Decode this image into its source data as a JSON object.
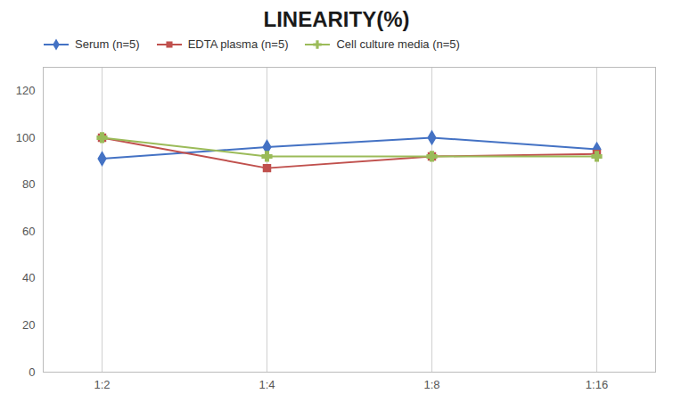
{
  "chart_data": {
    "type": "line",
    "title": "LINEARITY(%)",
    "categories": [
      "1:2",
      "1:4",
      "1:8",
      "1:16"
    ],
    "series": [
      {
        "name": "Serum (n=5)",
        "color": "#4472C4",
        "marker": "diamond",
        "values": [
          91,
          96,
          100,
          95
        ]
      },
      {
        "name": "EDTA plasma (n=5)",
        "color": "#C0504D",
        "marker": "square",
        "values": [
          100,
          87,
          92,
          93
        ]
      },
      {
        "name": "Cell culture media (n=5)",
        "color": "#9BBB59",
        "marker": "plus",
        "values": [
          100,
          92,
          92,
          92
        ]
      }
    ],
    "ylim": [
      0,
      130
    ],
    "yticks": [
      0,
      20,
      40,
      60,
      80,
      100,
      120
    ],
    "grid": "x",
    "legend": "top"
  }
}
